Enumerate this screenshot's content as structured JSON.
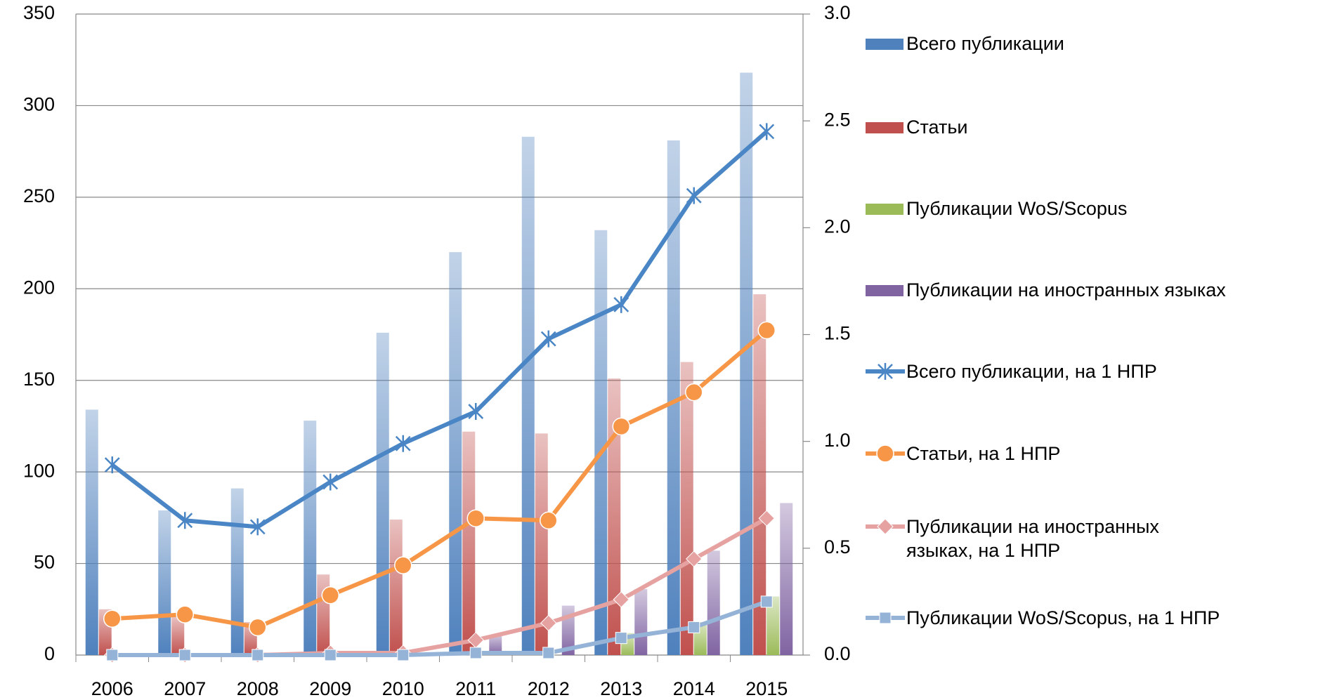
{
  "chart_data": {
    "type": "bar_line",
    "categories": [
      "2006",
      "2007",
      "2008",
      "2009",
      "2010",
      "2011",
      "2012",
      "2013",
      "2014",
      "2015"
    ],
    "ylim": [
      0,
      350
    ],
    "yticks": [
      0,
      50,
      100,
      150,
      200,
      250,
      300,
      350
    ],
    "y2lim": [
      0,
      3.0
    ],
    "y2ticks": [
      {
        "value": 0,
        "label": "0.0"
      },
      0.5,
      {
        "value": 1.0,
        "label": "1.0"
      },
      1.5,
      {
        "value": 2.0,
        "label": "2.0"
      },
      2.5,
      {
        "value": 3.0,
        "label": "3.0"
      }
    ],
    "grid": true,
    "legend": "right",
    "series": [
      {
        "name": "Всего публикации",
        "type": "bar",
        "color": "#4f81bd",
        "values": [
          134,
          79,
          91,
          128,
          176,
          220,
          283,
          232,
          281,
          318
        ]
      },
      {
        "name": "Статьи",
        "type": "bar",
        "color": "#c0504d",
        "values": [
          25,
          21,
          18,
          44,
          74,
          122,
          121,
          151,
          160,
          197
        ]
      },
      {
        "name": "Публикации WoS/Scopus",
        "type": "bar",
        "color": "#9bbb59",
        "values": [
          0,
          0,
          0,
          0,
          0,
          0,
          0,
          12,
          18,
          32
        ]
      },
      {
        "name": "Публикации на иностранных языках",
        "type": "bar",
        "color": "#8064a2",
        "values": [
          0,
          0,
          0,
          0,
          0,
          11,
          27,
          36,
          57,
          83
        ]
      },
      {
        "name": "Всего публикации, на 1 НПР",
        "type": "line",
        "axis": "y2",
        "marker": "star",
        "color": "#4a86c5",
        "values": [
          0.89,
          0.63,
          0.6,
          0.81,
          0.99,
          1.14,
          1.48,
          1.64,
          2.15,
          2.45
        ]
      },
      {
        "name": "Статьи, на 1 НПР",
        "type": "line",
        "axis": "y2",
        "marker": "circle",
        "color": "#f79646",
        "values": [
          0.17,
          0.19,
          0.13,
          0.28,
          0.42,
          0.64,
          0.63,
          1.07,
          1.23,
          1.52
        ]
      },
      {
        "name": "Публикации на иностранных языках, на 1 НПР",
        "type": "line",
        "axis": "y2",
        "marker": "diamond",
        "color": "#e6a2a0",
        "values": [
          0,
          0,
          0,
          0.01,
          0.01,
          0.07,
          0.15,
          0.26,
          0.45,
          0.64
        ]
      },
      {
        "name": "Публикации WoS/Scopus, на 1 НПР",
        "type": "line",
        "axis": "y2",
        "marker": "square",
        "color": "#95b3d7",
        "values": [
          0,
          0,
          0,
          0,
          0,
          0.01,
          0.01,
          0.08,
          0.13,
          0.25
        ]
      }
    ]
  }
}
